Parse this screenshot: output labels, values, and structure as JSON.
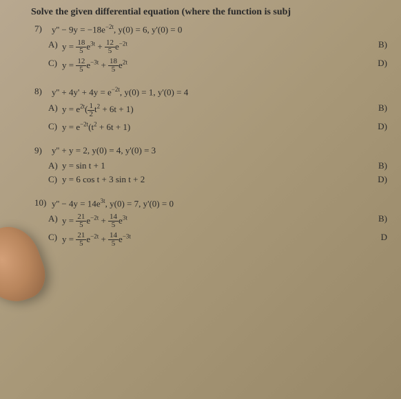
{
  "header": "Solve the given differential equation (where the function is subj",
  "problems": [
    {
      "num": "7)",
      "equation": "y'' − 9y = −18e<sup>−2t</sup>, y(0) = 6, y'(0) = 0",
      "answerA": "y = <frac>18|5</frac>e<sup>3t</sup> + <frac>12|5</frac>e<sup>−2t</sup>",
      "answerC": "y = <frac>12|5</frac>e<sup>−3t</sup> + <frac>18|5</frac>e<sup>2t</sup>",
      "rightB": "B)",
      "rightD": "D)"
    },
    {
      "num": "8)",
      "equation": "y'' + 4y' + 4y = e<sup>−2t</sup>, y(0) = 1, y'(0) = 4",
      "answerA": "y = e<sup>2t</sup>(<frac>1|2</frac>t<sup>2</sup> + 6t + 1)",
      "answerC": "y = e<sup>−2t</sup>(t<sup>2</sup> + 6t + 1)",
      "rightB": "B)",
      "rightD": "D)"
    },
    {
      "num": "9)",
      "equation": "y'' + y = 2, y(0) = 4, y'(0) = 3",
      "answerA": "y = sin t + 1",
      "answerC": "y = 6 cos t + 3 sin t + 2",
      "rightB": "B)",
      "rightD": "D)"
    },
    {
      "num": "10)",
      "equation": "y'' − 4y = 14e<sup>3t</sup>, y(0) = 7, y'(0) = 0",
      "answerA": "y = <frac>21|5</frac>e<sup>−2t</sup> + <frac>14|5</frac>e<sup>3t</sup>",
      "answerC": "y = <frac>21|5</frac>e<sup>−2t</sup> + <frac>14|5</frac>e<sup>−3t</sup>",
      "rightB": "B)",
      "rightD": "D"
    }
  ]
}
